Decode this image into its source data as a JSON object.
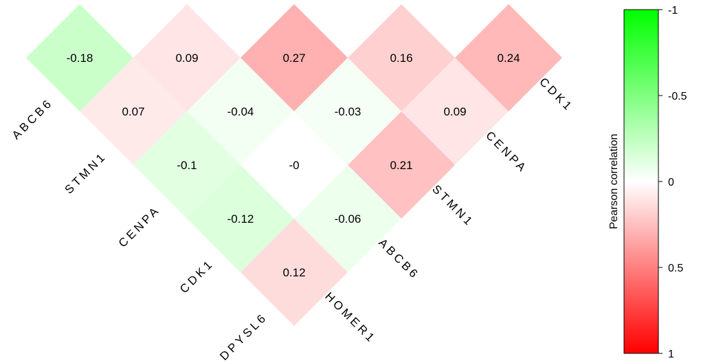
{
  "chart_data": {
    "type": "heatmap",
    "shape": "triangular-diamond",
    "left_axis_genes": [
      "ABCB6",
      "STMN1",
      "CENPA",
      "CDK1",
      "DPYSL6"
    ],
    "right_axis_genes": [
      "HOMER1",
      "ABCB6",
      "STMN1",
      "CENPA",
      "CDK1"
    ],
    "cells": [
      {
        "row": 0,
        "col": 0,
        "value": -0.18,
        "label": "-0.18"
      },
      {
        "row": 0,
        "col": 1,
        "value": 0.09,
        "label": "0.09"
      },
      {
        "row": 0,
        "col": 2,
        "value": 0.27,
        "label": "0.27"
      },
      {
        "row": 0,
        "col": 3,
        "value": 0.16,
        "label": "0.16"
      },
      {
        "row": 0,
        "col": 4,
        "value": 0.24,
        "label": "0.24"
      },
      {
        "row": 1,
        "col": 0,
        "value": 0.07,
        "label": "0.07"
      },
      {
        "row": 1,
        "col": 1,
        "value": -0.04,
        "label": "-0.04"
      },
      {
        "row": 1,
        "col": 2,
        "value": -0.03,
        "label": "-0.03"
      },
      {
        "row": 1,
        "col": 3,
        "value": 0.09,
        "label": "0.09"
      },
      {
        "row": 2,
        "col": 0,
        "value": -0.1,
        "label": "-0.1"
      },
      {
        "row": 2,
        "col": 1,
        "value": 0,
        "label": "-0"
      },
      {
        "row": 2,
        "col": 2,
        "value": 0.21,
        "label": "0.21"
      },
      {
        "row": 3,
        "col": 0,
        "value": -0.12,
        "label": "-0.12"
      },
      {
        "row": 3,
        "col": 1,
        "value": -0.06,
        "label": "-0.06"
      },
      {
        "row": 4,
        "col": 0,
        "value": 0.12,
        "label": "0.12"
      }
    ],
    "colorbar": {
      "title": "Pearson correlation",
      "range": [
        -1,
        1
      ],
      "ticks": [
        -1,
        -0.5,
        0,
        0.5,
        1
      ],
      "tick_labels": [
        "-1",
        "-0.5",
        "0",
        "0.5",
        "1"
      ],
      "low_color": "#00ff00",
      "mid_color": "#ffffff",
      "high_color": "#ff0000"
    }
  }
}
